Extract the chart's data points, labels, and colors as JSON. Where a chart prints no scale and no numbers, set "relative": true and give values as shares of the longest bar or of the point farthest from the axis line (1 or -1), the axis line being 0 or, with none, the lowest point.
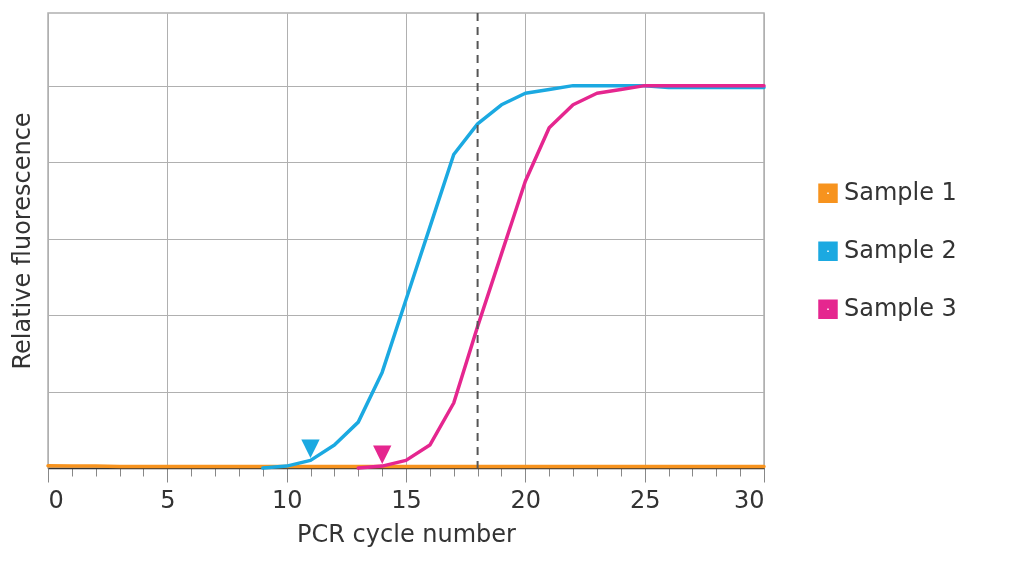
{
  "chart_data": {
    "type": "line",
    "relative": true,
    "xlabel": "PCR cycle number",
    "ylabel": "Relative fluorescence",
    "x": [
      0,
      1,
      2,
      3,
      4,
      5,
      6,
      7,
      8,
      9,
      10,
      11,
      12,
      13,
      14,
      15,
      16,
      17,
      18,
      19,
      20,
      21,
      22,
      23,
      24,
      25,
      26,
      27,
      28,
      29,
      30
    ],
    "xlim": [
      0,
      30
    ],
    "xticks": [
      0,
      {
        "value": 1,
        "label": null
      },
      {
        "value": 2,
        "label": null
      },
      {
        "value": 3,
        "label": null
      },
      {
        "value": 4,
        "label": null
      },
      5,
      {
        "value": 6,
        "label": null
      },
      {
        "value": 7,
        "label": null
      },
      {
        "value": 8,
        "label": null
      },
      {
        "value": 9,
        "label": null
      },
      10,
      {
        "value": 11,
        "label": null
      },
      {
        "value": 12,
        "label": null
      },
      {
        "value": 13,
        "label": null
      },
      {
        "value": 14,
        "label": null
      },
      15,
      {
        "value": 16,
        "label": null
      },
      {
        "value": 17,
        "label": null
      },
      {
        "value": 18,
        "label": null
      },
      {
        "value": 19,
        "label": null
      },
      20,
      {
        "value": 21,
        "label": null
      },
      {
        "value": 22,
        "label": null
      },
      {
        "value": 23,
        "label": null
      },
      {
        "value": 24,
        "label": null
      },
      25,
      {
        "value": 26,
        "label": null
      },
      {
        "value": 27,
        "label": null
      },
      {
        "value": 28,
        "label": null
      },
      {
        "value": 29,
        "label": null
      },
      30
    ],
    "series": [
      {
        "name": "Sample 1",
        "color": "#f7931e",
        "values": [
          0.006,
          0.005,
          0.005,
          0.004,
          0.004,
          0.004,
          0.004,
          0.004,
          0.004,
          0.004,
          0.004,
          0.004,
          0.004,
          0.004,
          0.004,
          0.004,
          0.004,
          0.004,
          0.004,
          0.004,
          0.004,
          0.004,
          0.004,
          0.004,
          0.004,
          0.004,
          0.004,
          0.004,
          0.004,
          0.004,
          0.004
        ]
      },
      {
        "name": "Sample 2",
        "color": "#1ba9e1",
        "values": [
          null,
          null,
          null,
          null,
          null,
          null,
          null,
          null,
          null,
          0,
          0.005,
          0.02,
          0.06,
          0.12,
          0.25,
          0.44,
          0.63,
          0.82,
          0.9,
          0.95,
          0.98,
          0.99,
          1,
          1,
          1,
          1,
          0.995,
          0.995,
          0.995,
          0.995,
          0.995
        ]
      },
      {
        "name": "Sample 3",
        "color": "#e5268f",
        "values": [
          null,
          null,
          null,
          null,
          null,
          null,
          null,
          null,
          null,
          null,
          null,
          null,
          null,
          0,
          0.005,
          0.02,
          0.06,
          0.17,
          0.37,
          0.56,
          0.75,
          0.89,
          0.95,
          0.98,
          0.99,
          1,
          1,
          1,
          1,
          1,
          1
        ]
      }
    ],
    "ref_lines": [
      {
        "axis": "x",
        "value": 18,
        "color": "#555555",
        "line_style": "dashed"
      }
    ],
    "annotations": [
      {
        "text": "▼",
        "x": 11,
        "y": 0.02
      },
      {
        "text": "▼",
        "x": 14,
        "y": 0.005
      }
    ],
    "grid": true,
    "legend": "right",
    "line_style": "solid",
    "marker": "none"
  }
}
